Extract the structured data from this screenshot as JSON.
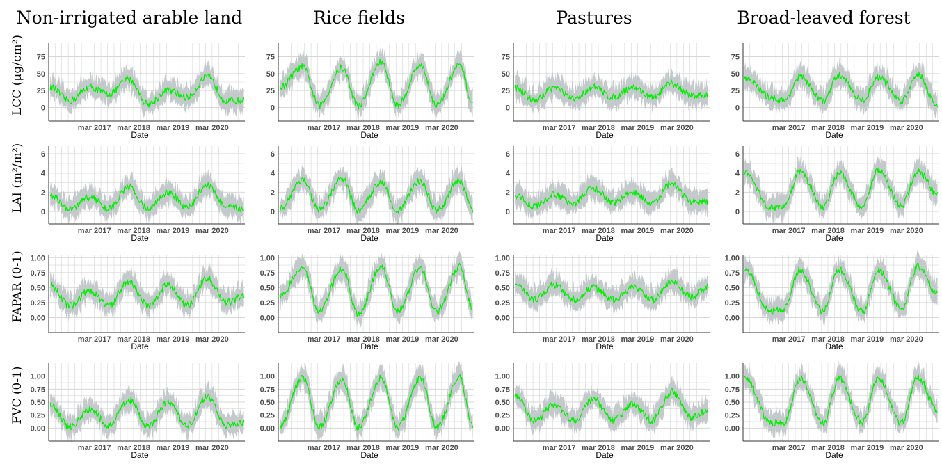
{
  "columns": [
    "Non-irrigated arable land",
    "Rice fields",
    "Pastures",
    "Broad-leaved forest"
  ],
  "rows": [
    {
      "label": "LCC (μg/cm²)",
      "yticks": [
        "75",
        "50",
        "25",
        "0"
      ],
      "ylim": [
        -20,
        95
      ]
    },
    {
      "label": "LAI (m²/m²)",
      "yticks": [
        "6",
        "4",
        "2",
        "0"
      ],
      "ylim": [
        -1.3,
        6.8
      ]
    },
    {
      "label": "FAPAR (0-1)",
      "yticks": [
        "1.00",
        "0.75",
        "0.50",
        "0.25",
        "0.00"
      ],
      "ylim": [
        -0.25,
        1.05
      ]
    },
    {
      "label": "FVC (0-1)",
      "yticks": [
        "1.00",
        "0.75",
        "0.50",
        "0.25",
        "0.00"
      ],
      "ylim": [
        -0.25,
        1.25
      ]
    }
  ],
  "x_axis": {
    "label": "Date",
    "tick_labels": [
      "mar 2017",
      "mar 2018",
      "mar 2019",
      "mar 2020"
    ],
    "range": [
      "2016-01-01",
      "2020-12-31"
    ]
  },
  "colors": {
    "line": "#00ee00",
    "band": "#c4cacc",
    "grid": "#d6d6d6",
    "axis": "#333333"
  },
  "chart_data": [
    {
      "type": "line",
      "row": "LCC (μg/cm²)",
      "column": "Non-irrigated arable land",
      "x_label": "Date",
      "x": [
        "2016-01",
        "2016-07",
        "2017-01",
        "2017-07",
        "2018-01",
        "2018-07",
        "2019-01",
        "2019-07",
        "2020-01",
        "2020-07",
        "2020-12"
      ],
      "series": [
        {
          "values": [
            30,
            10,
            30,
            20,
            42,
            5,
            25,
            15,
            45,
            10,
            10
          ]
        }
      ]
    },
    {
      "type": "line",
      "row": "LCC (μg/cm²)",
      "column": "Rice fields",
      "x_label": "Date",
      "x": [
        "2016-01",
        "2016-08",
        "2017-01",
        "2017-08",
        "2018-01",
        "2018-08",
        "2019-01",
        "2019-08",
        "2020-01",
        "2020-08",
        "2020-12"
      ],
      "series": [
        {
          "values": [
            30,
            60,
            3,
            58,
            3,
            67,
            3,
            63,
            3,
            62,
            5
          ]
        }
      ]
    },
    {
      "type": "line",
      "row": "LCC (μg/cm²)",
      "column": "Pastures",
      "x_label": "Date",
      "x": [
        "2016-01",
        "2016-07",
        "2017-01",
        "2017-07",
        "2018-01",
        "2018-07",
        "2019-01",
        "2019-07",
        "2020-01",
        "2020-07",
        "2020-12"
      ],
      "series": [
        {
          "values": [
            30,
            10,
            30,
            12,
            30,
            15,
            30,
            15,
            35,
            18,
            18
          ]
        }
      ]
    },
    {
      "type": "line",
      "row": "LCC (μg/cm²)",
      "column": "Broad-leaved forest",
      "x_label": "Date",
      "x": [
        "2016-01",
        "2016-09",
        "2017-01",
        "2017-06",
        "2018-01",
        "2018-06",
        "2019-01",
        "2019-06",
        "2020-01",
        "2020-06",
        "2020-12"
      ],
      "series": [
        {
          "values": [
            45,
            15,
            10,
            45,
            10,
            48,
            10,
            45,
            10,
            50,
            2
          ]
        }
      ]
    },
    {
      "type": "line",
      "row": "LAI (m²/m²)",
      "column": "Non-irrigated arable land",
      "x_label": "Date",
      "x": [
        "2016-01",
        "2016-07",
        "2017-01",
        "2017-07",
        "2018-01",
        "2018-07",
        "2019-01",
        "2019-07",
        "2020-01",
        "2020-07",
        "2020-12"
      ],
      "series": [
        {
          "values": [
            1.8,
            0.2,
            1.5,
            0.3,
            2.5,
            0.3,
            2.0,
            0.4,
            2.8,
            0.4,
            0.3
          ]
        }
      ]
    },
    {
      "type": "line",
      "row": "LAI (m²/m²)",
      "column": "Rice fields",
      "x_label": "Date",
      "x": [
        "2016-01",
        "2016-08",
        "2017-01",
        "2017-08",
        "2018-01",
        "2018-08",
        "2019-01",
        "2019-08",
        "2020-01",
        "2020-08",
        "2020-12"
      ],
      "series": [
        {
          "values": [
            0.3,
            3.3,
            0.1,
            3.4,
            0.1,
            3.1,
            0.1,
            3.2,
            0.1,
            3.2,
            0.2
          ]
        }
      ]
    },
    {
      "type": "line",
      "row": "LAI (m²/m²)",
      "column": "Pastures",
      "x_label": "Date",
      "x": [
        "2016-01",
        "2016-07",
        "2017-01",
        "2017-07",
        "2018-01",
        "2018-07",
        "2019-01",
        "2019-07",
        "2020-01",
        "2020-07",
        "2020-12"
      ],
      "series": [
        {
          "values": [
            1.7,
            0.6,
            1.7,
            0.9,
            2.4,
            0.9,
            2.0,
            0.8,
            2.9,
            1.0,
            1.0
          ]
        }
      ]
    },
    {
      "type": "line",
      "row": "LAI (m²/m²)",
      "column": "Broad-leaved forest",
      "x_label": "Date",
      "x": [
        "2016-01",
        "2016-09",
        "2017-01",
        "2017-06",
        "2018-01",
        "2018-06",
        "2019-01",
        "2019-06",
        "2020-01",
        "2020-06",
        "2020-12"
      ],
      "series": [
        {
          "values": [
            4.0,
            0.4,
            0.5,
            4.2,
            0.5,
            4.0,
            0.5,
            4.3,
            0.6,
            4.2,
            1.8
          ]
        }
      ]
    },
    {
      "type": "line",
      "row": "FAPAR (0-1)",
      "column": "Non-irrigated arable land",
      "x_label": "Date",
      "x": [
        "2016-01",
        "2016-07",
        "2017-01",
        "2017-07",
        "2018-01",
        "2018-07",
        "2019-01",
        "2019-07",
        "2020-01",
        "2020-07",
        "2020-12"
      ],
      "series": [
        {
          "values": [
            0.55,
            0.2,
            0.45,
            0.2,
            0.6,
            0.2,
            0.55,
            0.2,
            0.65,
            0.25,
            0.35
          ]
        }
      ]
    },
    {
      "type": "line",
      "row": "FAPAR (0-1)",
      "column": "Rice fields",
      "x_label": "Date",
      "x": [
        "2016-01",
        "2016-08",
        "2017-01",
        "2017-08",
        "2018-01",
        "2018-08",
        "2019-01",
        "2019-08",
        "2020-01",
        "2020-08",
        "2020-12"
      ],
      "series": [
        {
          "values": [
            0.35,
            0.85,
            0.1,
            0.82,
            0.05,
            0.85,
            0.1,
            0.82,
            0.1,
            0.85,
            0.15
          ]
        }
      ]
    },
    {
      "type": "line",
      "row": "FAPAR (0-1)",
      "column": "Pastures",
      "x_label": "Date",
      "x": [
        "2016-01",
        "2016-07",
        "2017-01",
        "2017-07",
        "2018-01",
        "2018-07",
        "2019-01",
        "2019-07",
        "2020-01",
        "2020-07",
        "2020-12"
      ],
      "series": [
        {
          "values": [
            0.55,
            0.3,
            0.55,
            0.3,
            0.5,
            0.3,
            0.5,
            0.3,
            0.6,
            0.35,
            0.5
          ]
        }
      ]
    },
    {
      "type": "line",
      "row": "FAPAR (0-1)",
      "column": "Broad-leaved forest",
      "x_label": "Date",
      "x": [
        "2016-01",
        "2016-09",
        "2017-01",
        "2017-06",
        "2018-01",
        "2018-06",
        "2019-01",
        "2019-06",
        "2020-01",
        "2020-06",
        "2020-12"
      ],
      "series": [
        {
          "values": [
            0.8,
            0.1,
            0.15,
            0.8,
            0.1,
            0.8,
            0.1,
            0.8,
            0.15,
            0.85,
            0.4
          ]
        }
      ]
    },
    {
      "type": "line",
      "row": "FVC (0-1)",
      "column": "Non-irrigated arable land",
      "x_label": "Date",
      "x": [
        "2016-01",
        "2016-07",
        "2017-01",
        "2017-07",
        "2018-01",
        "2018-07",
        "2019-01",
        "2019-07",
        "2020-01",
        "2020-07",
        "2020-12"
      ],
      "series": [
        {
          "values": [
            0.45,
            0.03,
            0.35,
            0.05,
            0.55,
            0.03,
            0.5,
            0.05,
            0.6,
            0.05,
            0.1
          ]
        }
      ]
    },
    {
      "type": "line",
      "row": "FVC (0-1)",
      "column": "Rice fields",
      "x_label": "Date",
      "x": [
        "2016-01",
        "2016-08",
        "2017-01",
        "2017-08",
        "2018-01",
        "2018-08",
        "2019-01",
        "2019-08",
        "2020-01",
        "2020-08",
        "2020-12"
      ],
      "series": [
        {
          "values": [
            0.05,
            0.97,
            0.02,
            0.95,
            0.02,
            0.97,
            0.02,
            0.97,
            0.02,
            0.97,
            0.05
          ]
        }
      ]
    },
    {
      "type": "line",
      "row": "FVC (0-1)",
      "column": "Pastures",
      "x_label": "Date",
      "x": [
        "2016-01",
        "2016-07",
        "2017-01",
        "2017-07",
        "2018-01",
        "2018-07",
        "2019-01",
        "2019-07",
        "2020-01",
        "2020-07",
        "2020-12"
      ],
      "series": [
        {
          "values": [
            0.65,
            0.15,
            0.45,
            0.15,
            0.55,
            0.15,
            0.45,
            0.15,
            0.7,
            0.2,
            0.35
          ]
        }
      ]
    },
    {
      "type": "line",
      "row": "FVC (0-1)",
      "column": "Broad-leaved forest",
      "x_label": "Date",
      "x": [
        "2016-01",
        "2016-09",
        "2017-01",
        "2017-06",
        "2018-01",
        "2018-06",
        "2019-01",
        "2019-06",
        "2020-01",
        "2020-06",
        "2020-12"
      ],
      "series": [
        {
          "values": [
            0.97,
            0.1,
            0.1,
            0.95,
            0.1,
            0.95,
            0.1,
            0.97,
            0.1,
            0.97,
            0.35
          ]
        }
      ]
    }
  ]
}
